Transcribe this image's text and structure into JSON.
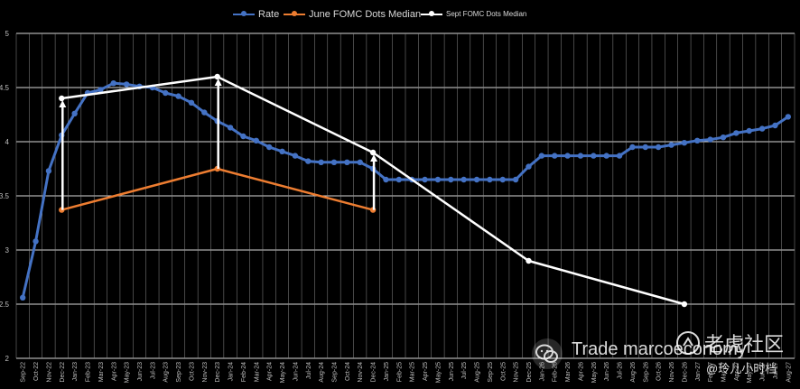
{
  "chart_data": {
    "type": "line",
    "title": "",
    "xlabel": "",
    "ylabel": "",
    "ylim": [
      2,
      5
    ],
    "y_ticks": [
      "2",
      "2.5",
      "3",
      "3.5",
      "4",
      "4.5",
      "5"
    ],
    "grid": true,
    "legend_position": "top",
    "categories": [
      "Sep-22",
      "Oct-22",
      "Nov-22",
      "Dec-22",
      "Jan-23",
      "Feb-23",
      "Mar-23",
      "Apr-23",
      "May-23",
      "Jun-23",
      "Jul-23",
      "Aug-23",
      "Sep-23",
      "Oct-23",
      "Nov-23",
      "Dec-23",
      "Jan-24",
      "Feb-24",
      "Mar-24",
      "Apr-24",
      "May-24",
      "Jun-24",
      "Jul-24",
      "Aug-24",
      "Sep-24",
      "Oct-24",
      "Nov-24",
      "Dec-24",
      "Jan-25",
      "Feb-25",
      "Mar-25",
      "Apr-25",
      "May-25",
      "Jun-25",
      "Jul-25",
      "Aug-25",
      "Sep-25",
      "Oct-25",
      "Nov-25",
      "Dec-25",
      "Jan-26",
      "Feb-26",
      "Mar-26",
      "Apr-26",
      "May-26",
      "Jun-26",
      "Jul-26",
      "Aug-26",
      "Sep-26",
      "Oct-26",
      "Nov-26",
      "Dec-26",
      "Jan-27",
      "Feb-27",
      "Mar-27",
      "Apr-27",
      "May-27",
      "Jun-27",
      "Jul-27",
      "Aug-27"
    ],
    "series": [
      {
        "name": "Rate",
        "color": "#4472c4",
        "values": [
          2.56,
          3.08,
          3.73,
          4.06,
          4.26,
          4.45,
          4.48,
          4.54,
          4.53,
          4.51,
          4.5,
          4.45,
          4.42,
          4.36,
          4.27,
          4.19,
          4.13,
          4.05,
          4.01,
          3.95,
          3.91,
          3.87,
          3.82,
          3.81,
          3.81,
          3.81,
          3.81,
          3.75,
          3.65,
          3.65,
          3.65,
          3.65,
          3.65,
          3.65,
          3.65,
          3.65,
          3.65,
          3.65,
          3.65,
          3.77,
          3.87,
          3.87,
          3.87,
          3.87,
          3.87,
          3.87,
          3.87,
          3.95,
          3.95,
          3.95,
          3.97,
          3.99,
          4.01,
          4.02,
          4.04,
          4.08,
          4.1,
          4.12,
          4.15,
          4.23
        ]
      },
      {
        "name": "June FOMC Dots Median",
        "color": "#ed7d31",
        "points": [
          {
            "x": "Dec-22",
            "y": 3.37
          },
          {
            "x": "Dec-23",
            "y": 3.75
          },
          {
            "x": "Dec-24",
            "y": 3.37
          }
        ]
      },
      {
        "name": "Sept FOMC Dots Median",
        "color": "#ffffff",
        "points": [
          {
            "x": "Dec-22",
            "y": 4.4
          },
          {
            "x": "Dec-23",
            "y": 4.6
          },
          {
            "x": "Dec-24",
            "y": 3.9
          },
          {
            "x": "Dec-25",
            "y": 2.9
          },
          {
            "x": "Dec-26",
            "y": 2.5
          }
        ]
      }
    ],
    "arrows": [
      {
        "x": "Dec-22",
        "from": 3.37,
        "to": 4.4
      },
      {
        "x": "Dec-23",
        "from": 3.75,
        "to": 4.6
      },
      {
        "x": "Dec-24",
        "from": 3.37,
        "to": 3.9
      }
    ]
  },
  "watermark": {
    "text": "Trade marcoeconomy",
    "cn_text": "老虎社区",
    "handle": "@玲儿小时档"
  }
}
